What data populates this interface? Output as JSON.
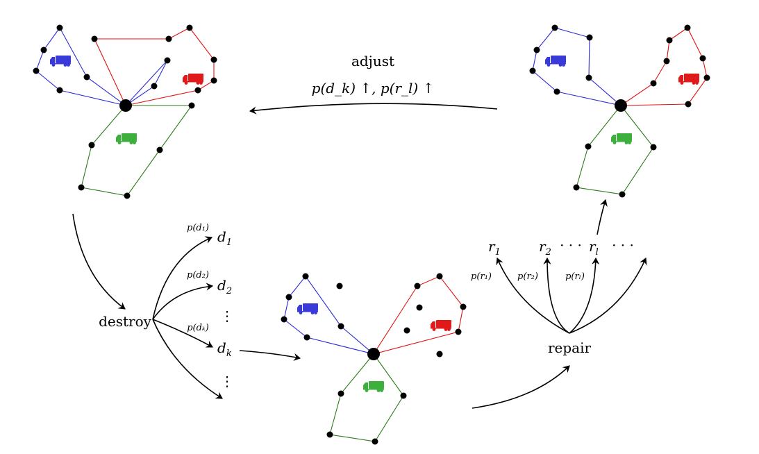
{
  "colors": {
    "blue": "#2b2bd6",
    "red": "#e01010",
    "green": "#2a7a1a",
    "truck_blue": "#3a3ad8",
    "truck_red": "#e01a1a",
    "truck_green": "#3caf3c",
    "node": "#000000"
  },
  "icons": {
    "vehicle": "truck-icon",
    "customer": "node-dot",
    "depot": "depot-dot"
  },
  "labels": {
    "adjust": "adjust",
    "adjust_formula": "p(d_k) ↑, p(r_l) ↑",
    "destroy": "destroy",
    "repair": "repair",
    "ellipsis_h": "· · ·",
    "ellipsis_v": "⋮"
  },
  "destroy_operators": [
    {
      "name": "d",
      "sub": "1",
      "prob": "p(d₁)"
    },
    {
      "name": "d",
      "sub": "2",
      "prob": "p(d₂)"
    },
    {
      "name": "d",
      "sub": "k",
      "prob": "p(dₖ)"
    }
  ],
  "repair_operators": [
    {
      "name": "r",
      "sub": "1",
      "prob": "p(r₁)"
    },
    {
      "name": "r",
      "sub": "2",
      "prob": "p(r₂)"
    },
    {
      "name": "r",
      "sub": "l",
      "prob": "p(rₗ)"
    }
  ]
}
